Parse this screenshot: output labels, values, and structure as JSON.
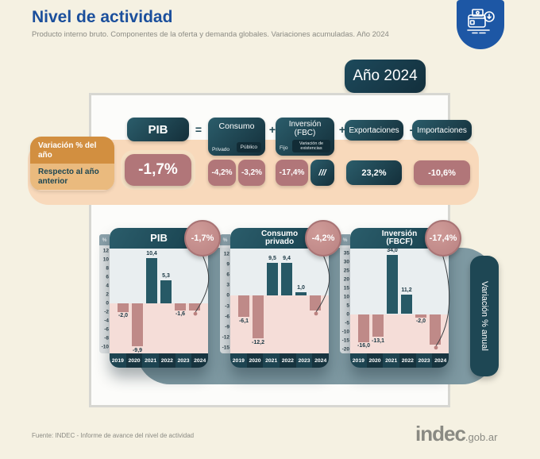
{
  "header": {
    "title": "Nivel de actividad",
    "subtitle": "Producto interno bruto. Componentes de la oferta y demanda globales. Variaciones acumuladas. Año 2024"
  },
  "year_badge": {
    "label": "Año 2024"
  },
  "legend": {
    "top": "Variación % del año",
    "bottom": "Respecto al año anterior"
  },
  "equation": {
    "pib": {
      "label": "PIB",
      "value": "-1,7%"
    },
    "op_equals": "=",
    "op_plus1": "+",
    "op_plus2": "+",
    "op_minus": "-",
    "consumo": {
      "label": "Consumo",
      "sub1": "Privado",
      "sub2": "Público",
      "value1": "-4,2%",
      "value2": "-3,2%"
    },
    "inversion": {
      "label": "Inversión (FBC)",
      "sub1": "Fijo",
      "sub2": "Variación de existencias",
      "value1": "-17,4%",
      "value2": "///"
    },
    "exportaciones": {
      "label": "Exportaciones",
      "value": "23,2%"
    },
    "importaciones": {
      "label": "Importaciones",
      "value": "-10,6%"
    }
  },
  "right_tab": {
    "label": "Variación % anual"
  },
  "axis_unit": "%",
  "chart_data": [
    {
      "type": "bar",
      "title": "PIB",
      "badge": "-1,7%",
      "categories": [
        "2019",
        "2020",
        "2021",
        "2022",
        "2023",
        "2024"
      ],
      "values": [
        -2.0,
        -9.9,
        10.4,
        5.3,
        -1.6,
        -1.7
      ],
      "bar_labels": [
        "-2,0",
        "-9,9",
        "10,4",
        "5,3",
        "-1,6",
        ""
      ],
      "yticks": [
        12,
        10,
        8,
        6,
        4,
        2,
        0,
        -2,
        -4,
        -6,
        -8,
        -10
      ],
      "ylim": [
        -10,
        12
      ],
      "ylabel": "Variación % anual"
    },
    {
      "type": "bar",
      "title": "Consumo privado",
      "badge": "-4,2%",
      "categories": [
        "2019",
        "2020",
        "2021",
        "2022",
        "2023",
        "2024"
      ],
      "values": [
        -6.1,
        -12.2,
        9.5,
        9.4,
        1.0,
        -4.2
      ],
      "bar_labels": [
        "-6,1",
        "-12,2",
        "9,5",
        "9,4",
        "1,0",
        ""
      ],
      "yticks": [
        12,
        9,
        6,
        3,
        0,
        -3,
        -6,
        -9,
        -12,
        -15
      ],
      "ylim": [
        -15,
        12
      ],
      "ylabel": "Variación % anual"
    },
    {
      "type": "bar",
      "title": "Inversión (FBCF)",
      "badge": "-17,4%",
      "categories": [
        "2019",
        "2020",
        "2021",
        "2022",
        "2023",
        "2024"
      ],
      "values": [
        -16.0,
        -13.1,
        34.0,
        11.2,
        -2.0,
        -17.4
      ],
      "bar_labels": [
        "-16,0",
        "-13,1",
        "34,0",
        "11,2",
        "-2,0",
        ""
      ],
      "yticks": [
        35,
        30,
        25,
        20,
        15,
        10,
        5,
        0,
        -5,
        -10,
        -15,
        -20
      ],
      "ylim": [
        -20,
        35
      ],
      "ylabel": "Variación % anual"
    }
  ],
  "colors": {
    "teal_dark": "#17404d",
    "teal_bar": "#275966",
    "rose_bar": "#bf8a88",
    "rose_value": "#b17679",
    "peach_band": "#f8d9bb",
    "orange_dark": "#d28f40",
    "orange_light": "#eaba7e",
    "brand_blue": "#1d57a5",
    "slate": "#7e99a2",
    "pos_bg": "#e9eef0",
    "neg_bg": "#f5ddd8"
  },
  "footer": {
    "source": "Fuente: INDEC - Informe de avance del nivel de actividad",
    "logo": "indec",
    "logo_suffix": ".gob.ar"
  }
}
